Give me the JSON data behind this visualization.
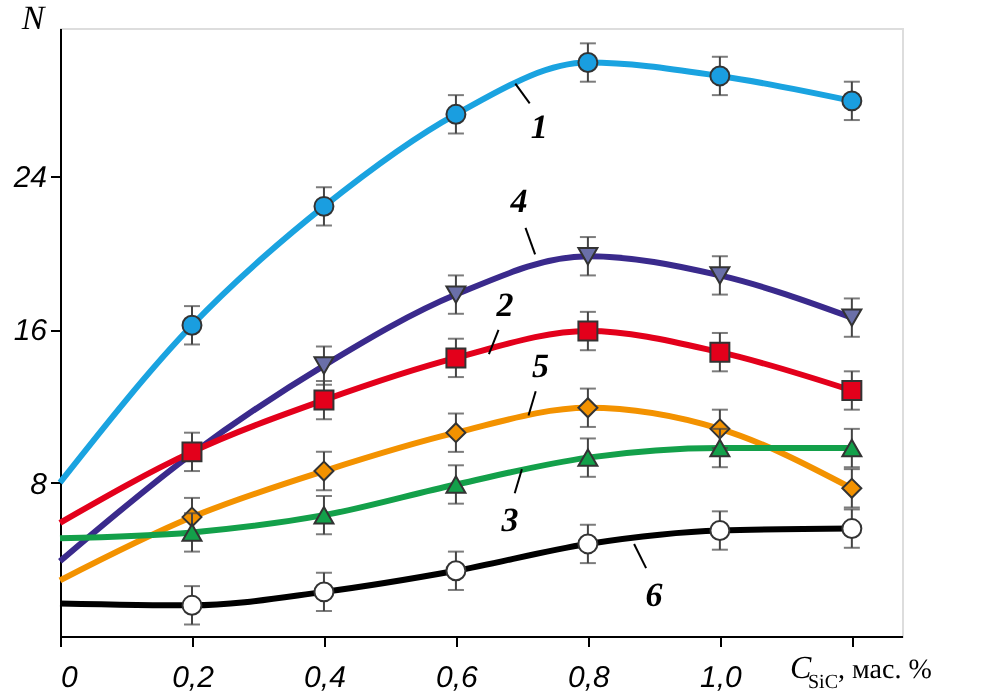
{
  "chart_data": {
    "type": "line",
    "xlabel": "C$_{SiC}$, мас. %",
    "ylabel": "N",
    "xlim": [
      0,
      1.276
    ],
    "ylim": [
      0,
      31.7
    ],
    "xticks": [
      {
        "value": 0,
        "label": "0"
      },
      {
        "value": 0.2,
        "label": "0,2"
      },
      {
        "value": 0.4,
        "label": "0,4"
      },
      {
        "value": 0.6,
        "label": "0,6"
      },
      {
        "value": 0.8,
        "label": "0,8"
      },
      {
        "value": 1.0,
        "label": "1,0"
      },
      {
        "value": 1.2,
        "label": null
      }
    ],
    "yticks": [
      8,
      16,
      24
    ],
    "grid": false,
    "line_style": "solid",
    "series": [
      {
        "color": "#1aa3e0",
        "marker": "none",
        "x": [
          0,
          0.2,
          0.4,
          0.6,
          0.8,
          1.0,
          1.2
        ],
        "values": [
          8.0,
          16.2,
          22.4,
          27.2,
          29.9,
          29.2,
          27.9
        ]
      },
      {
        "color": "#3a2a8c",
        "marker": "none",
        "x": [
          0,
          0.2,
          0.4,
          0.6,
          0.8,
          1.0,
          1.2
        ],
        "values": [
          3.9,
          9.5,
          14.1,
          17.8,
          19.8,
          18.8,
          16.6
        ]
      },
      {
        "color": "#e3001b",
        "marker": "none",
        "x": [
          0,
          0.2,
          0.4,
          0.6,
          0.8,
          1.0,
          1.2
        ],
        "values": [
          5.9,
          9.6,
          12.3,
          14.5,
          15.9,
          14.8,
          12.8
        ]
      },
      {
        "color": "#f39200",
        "marker": "none",
        "x": [
          0,
          0.2,
          0.4,
          0.6,
          0.8,
          1.0,
          1.2
        ],
        "values": [
          2.9,
          6.2,
          8.6,
          10.6,
          11.9,
          10.8,
          7.7
        ]
      },
      {
        "color": "#13a04a",
        "marker": "none",
        "x": [
          0,
          0.2,
          0.4,
          0.6,
          0.8,
          1.0,
          1.2
        ],
        "values": [
          5.1,
          5.4,
          6.3,
          7.9,
          9.3,
          9.8,
          9.8
        ]
      },
      {
        "color": "#000000",
        "marker": "none",
        "x": [
          0,
          0.2,
          0.4,
          0.6,
          0.8,
          1.0,
          1.2
        ],
        "values": [
          1.7,
          1.6,
          2.3,
          3.4,
          4.8,
          5.5,
          5.6
        ]
      },
      {
        "type": "scatter",
        "color": "#1a9ee0",
        "marker": "circle",
        "x": [
          0.2,
          0.4,
          0.6,
          0.8,
          1.0,
          1.2
        ],
        "values": [
          16.2,
          22.4,
          27.2,
          29.9,
          29.2,
          27.9
        ],
        "errors": [
          1,
          1,
          1,
          1,
          1,
          1
        ]
      },
      {
        "type": "scatter",
        "color": "#6a6fa8",
        "marker": "triangle-down",
        "x": [
          0.4,
          0.6,
          0.8,
          1.0,
          1.2
        ],
        "values": [
          14.1,
          17.8,
          19.8,
          18.8,
          16.6
        ],
        "errors": [
          1,
          1,
          1,
          1,
          1
        ]
      },
      {
        "type": "scatter",
        "color": "#e3001b",
        "marker": "square",
        "x": [
          0.2,
          0.4,
          0.6,
          0.8,
          1.0,
          1.2
        ],
        "values": [
          9.6,
          12.3,
          14.5,
          15.9,
          14.8,
          12.8
        ],
        "errors": [
          1,
          1,
          1,
          1,
          1,
          1
        ]
      },
      {
        "type": "scatter",
        "color": "#f39200",
        "marker": "diamond",
        "x": [
          0.2,
          0.4,
          0.6,
          0.8,
          1.0,
          1.2
        ],
        "values": [
          6.2,
          8.6,
          10.6,
          11.9,
          10.8,
          7.7
        ],
        "errors": [
          1,
          1,
          1,
          1,
          1,
          1
        ]
      },
      {
        "type": "scatter",
        "color": "#13a04a",
        "marker": "triangle",
        "x": [
          0.2,
          0.4,
          0.6,
          0.8,
          1.0,
          1.2
        ],
        "values": [
          5.4,
          6.3,
          7.9,
          9.3,
          9.8,
          9.8
        ],
        "errors": [
          1,
          1,
          1,
          1,
          1,
          1
        ]
      },
      {
        "type": "scatter",
        "color": "#ffffff",
        "marker": "circle",
        "x": [
          0.2,
          0.4,
          0.6,
          0.8,
          1.0,
          1.2
        ],
        "values": [
          1.6,
          2.3,
          3.4,
          4.8,
          5.5,
          5.6
        ],
        "errors": [
          1,
          1,
          1,
          1,
          1,
          1
        ]
      }
    ],
    "annotations": [
      {
        "text": "1",
        "x": 0.69,
        "y": 28.8
      },
      {
        "text": "4",
        "x": 0.72,
        "y": 19.9
      },
      {
        "text": "2",
        "x": 0.65,
        "y": 14.7
      },
      {
        "text": "5",
        "x": 0.71,
        "y": 11.5
      },
      {
        "text": "3",
        "x": 0.7,
        "y": 8.7
      },
      {
        "text": "6",
        "x": 0.87,
        "y": 4.8
      }
    ]
  }
}
